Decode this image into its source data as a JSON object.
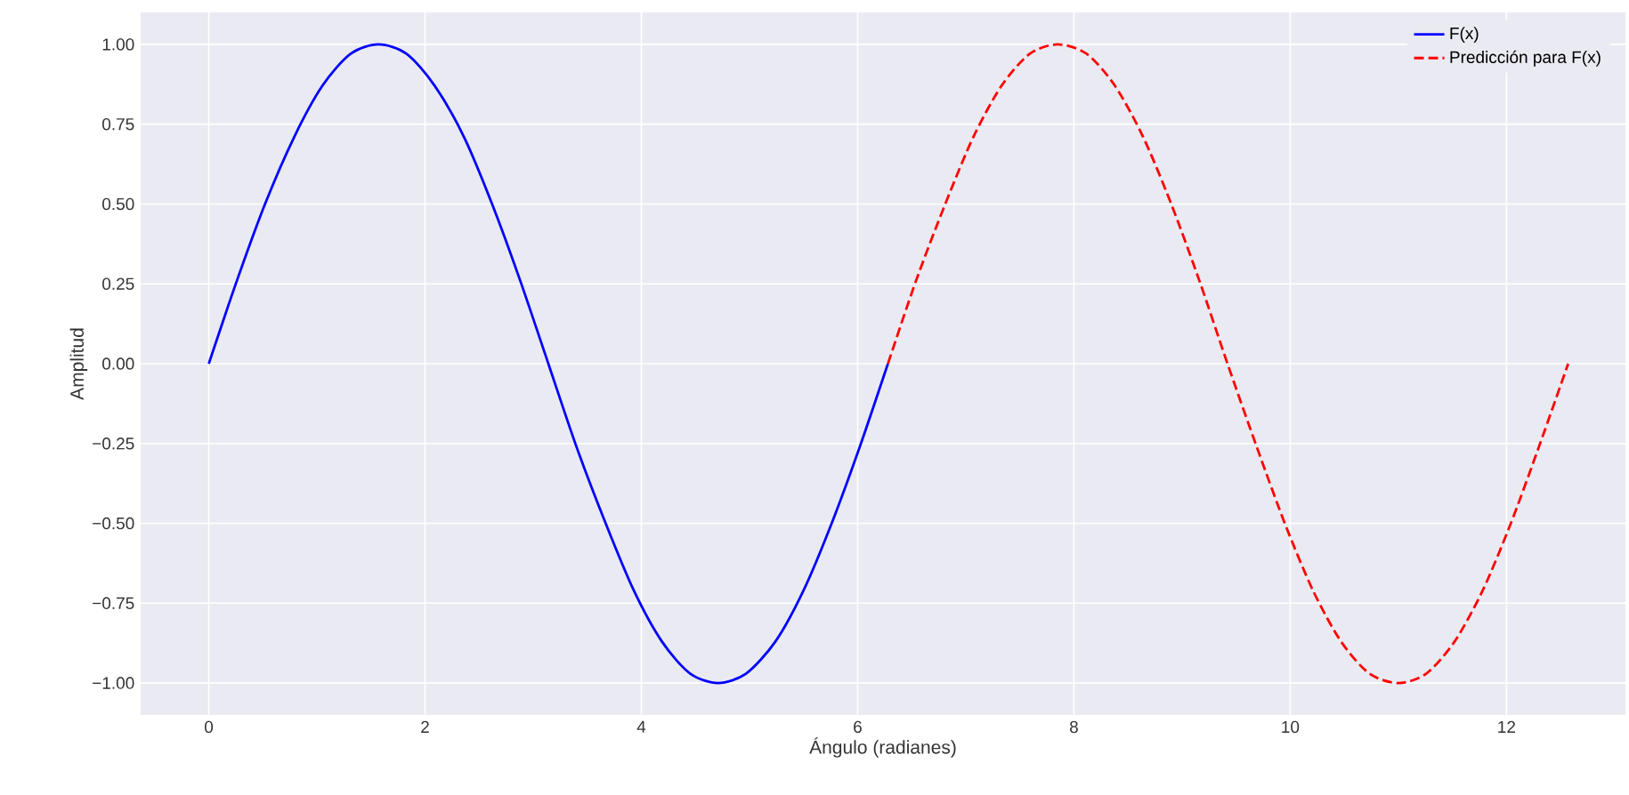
{
  "chart_data": {
    "type": "line",
    "xlabel": "Ángulo (radianes)",
    "ylabel": "Amplitud",
    "xlim": [
      -0.63,
      13.1
    ],
    "ylim": [
      -1.1,
      1.1
    ],
    "xticks": [
      0,
      2,
      4,
      6,
      8,
      10,
      12
    ],
    "yticks": [
      {
        "value": -1,
        "label": "−1.00"
      },
      {
        "value": -0.75,
        "label": "−0.75"
      },
      {
        "value": -0.5,
        "label": "−0.50"
      },
      {
        "value": -0.25,
        "label": "−0.25"
      },
      {
        "value": 0,
        "label": "0.00"
      },
      {
        "value": 0.25,
        "label": "0.25"
      },
      {
        "value": 0.5,
        "label": "0.50"
      },
      {
        "value": 0.75,
        "label": "0.75"
      },
      {
        "value": 1,
        "label": "1.00"
      }
    ],
    "grid": true,
    "legend": "top right",
    "series": [
      {
        "name": "F(x)",
        "color": "#0000ff",
        "line_style": "solid",
        "x": [
          0,
          0.26,
          0.52,
          0.79,
          1.05,
          1.31,
          1.57,
          1.83,
          2.09,
          2.36,
          2.62,
          2.88,
          3.14,
          3.4,
          3.67,
          3.93,
          4.19,
          4.45,
          4.71,
          4.97,
          5.24,
          5.5,
          5.76,
          6.02,
          6.28
        ],
        "values": [
          0,
          0.26,
          0.5,
          0.71,
          0.87,
          0.97,
          1,
          0.97,
          0.87,
          0.71,
          0.5,
          0.26,
          0,
          -0.26,
          -0.5,
          -0.71,
          -0.87,
          -0.97,
          -1,
          -0.97,
          -0.87,
          -0.71,
          -0.5,
          -0.26,
          0
        ]
      },
      {
        "name": "Predicción para F(x)",
        "color": "#ff0000",
        "line_style": "dashed",
        "x": [
          6.28,
          6.54,
          6.81,
          7.07,
          7.33,
          7.59,
          7.85,
          8.12,
          8.38,
          8.64,
          8.9,
          9.16,
          9.42,
          9.69,
          9.95,
          10.21,
          10.47,
          10.73,
          11.0,
          11.26,
          11.52,
          11.78,
          12.04,
          12.3,
          12.57
        ],
        "values": [
          0,
          0.26,
          0.5,
          0.71,
          0.87,
          0.97,
          1,
          0.97,
          0.87,
          0.71,
          0.5,
          0.26,
          0,
          -0.26,
          -0.5,
          -0.71,
          -0.87,
          -0.97,
          -1,
          -0.97,
          -0.87,
          -0.71,
          -0.5,
          -0.26,
          0
        ]
      }
    ]
  }
}
